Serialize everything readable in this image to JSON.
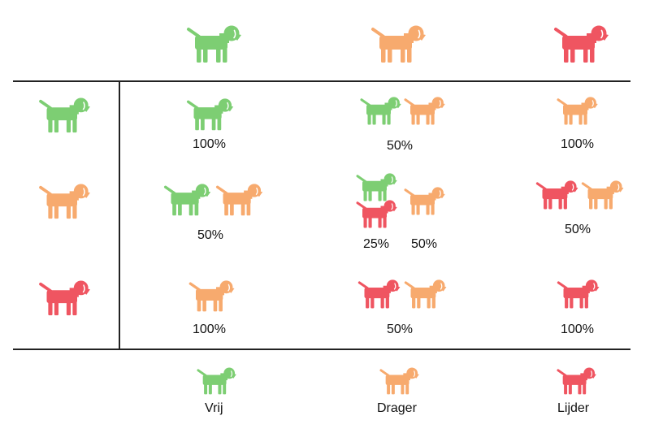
{
  "colors": {
    "free": "#7dce73",
    "carrier": "#f7aa6e",
    "affected": "#ef5561"
  },
  "dog_icon": "dog-icon",
  "column_headers": [
    "free",
    "carrier",
    "affected"
  ],
  "row_headers": [
    "free",
    "carrier",
    "affected"
  ],
  "cells": [
    {
      "dogs": [
        "free"
      ],
      "labels": [
        "100%"
      ]
    },
    {
      "dogs": [
        "free",
        "carrier"
      ],
      "labels": [
        "50%"
      ]
    },
    {
      "dogs": [
        "carrier"
      ],
      "labels": [
        "100%"
      ]
    },
    {
      "dogs": [
        "free",
        "carrier"
      ],
      "labels": [
        "50%"
      ]
    },
    {
      "dogs": [
        "free",
        "affected",
        "carrier"
      ],
      "labels": [
        "25%",
        "50%"
      ]
    },
    {
      "dogs": [
        "affected",
        "carrier"
      ],
      "labels": [
        "50%"
      ]
    },
    {
      "dogs": [
        "carrier"
      ],
      "labels": [
        "100%"
      ]
    },
    {
      "dogs": [
        "affected",
        "carrier"
      ],
      "labels": [
        "50%"
      ]
    },
    {
      "dogs": [
        "affected"
      ],
      "labels": [
        "100%"
      ]
    }
  ],
  "legend": [
    {
      "status": "free",
      "label": "Vrij"
    },
    {
      "status": "carrier",
      "label": "Drager"
    },
    {
      "status": "affected",
      "label": "Lijder"
    }
  ]
}
